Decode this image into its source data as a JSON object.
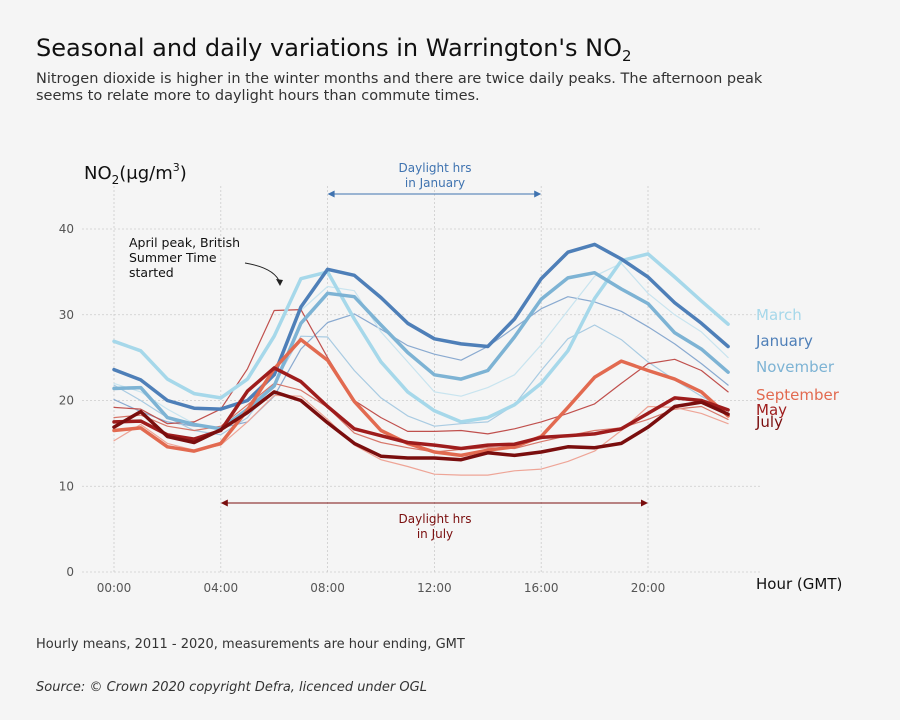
{
  "header": {
    "title_prefix": "Seasonal and daily variations in Warrington's NO",
    "title_sub": "2",
    "subtitle": "Nitrogen dioxide is higher in the winter months and there are twice daily peaks. The afternoon peak seems to relate more to daylight hours than commute times."
  },
  "footer": {
    "note": "Hourly means, 2011 - 2020, measurements are hour ending, GMT",
    "source": "Source: © Crown 2020 copyright Defra,  licenced under OGL"
  },
  "chart_data": {
    "type": "line",
    "ylabel_prefix": "NO",
    "ylabel_sub": "2",
    "ylabel_unit": "(μg/m",
    "ylabel_sup": "3",
    "ylabel_close": ")",
    "xlabel": "Hour (GMT)",
    "ylim": [
      0,
      45
    ],
    "xlim": [
      -1,
      24
    ],
    "yticks": [
      0,
      10,
      20,
      30,
      40
    ],
    "xticks": [
      0,
      4,
      8,
      12,
      16,
      20
    ],
    "xtick_labels": [
      "00:00",
      "04:00",
      "08:00",
      "12:00",
      "16:00",
      "20:00"
    ],
    "grid": true,
    "annotations": {
      "april": "April peak, British\nSummer Time\nstarted",
      "jan_daylight": "Daylight hrs\nin January",
      "jul_daylight": "Daylight hrs\nin July",
      "jan_range": [
        8,
        16
      ],
      "jul_range": [
        4,
        20
      ]
    },
    "x": [
      0,
      1,
      2,
      3,
      4,
      5,
      6,
      7,
      8,
      9,
      10,
      11,
      12,
      13,
      14,
      15,
      16,
      17,
      18,
      19,
      20,
      21,
      22,
      23
    ],
    "series": [
      {
        "name": "March",
        "color": "#a6d8ea",
        "width": 3.5,
        "labeled": true,
        "values": [
          26.9,
          25.8,
          22.5,
          20.8,
          20.3,
          22.5,
          27.5,
          34.2,
          35.0,
          29.5,
          24.5,
          21.0,
          18.8,
          17.5,
          18.0,
          19.5,
          22.0,
          25.8,
          31.9,
          36.3,
          37.1,
          34.4,
          31.6,
          28.9
        ]
      },
      {
        "name": "January",
        "color": "#4e7fb8",
        "width": 3.5,
        "labeled": true,
        "values": [
          23.6,
          22.4,
          20.0,
          19.1,
          19.0,
          20.0,
          23.0,
          30.9,
          35.3,
          34.6,
          32.0,
          29.0,
          27.2,
          26.6,
          26.3,
          29.5,
          34.2,
          37.3,
          38.2,
          36.5,
          34.4,
          31.4,
          29.0,
          26.3
        ]
      },
      {
        "name": "November",
        "color": "#7db3d4",
        "width": 3.5,
        "labeled": true,
        "values": [
          21.4,
          21.5,
          18.0,
          17.2,
          16.7,
          19.0,
          21.7,
          29.0,
          32.5,
          32.1,
          28.8,
          25.6,
          23.0,
          22.5,
          23.5,
          27.4,
          31.8,
          34.3,
          34.9,
          33.0,
          31.3,
          27.9,
          26.0,
          23.3
        ]
      },
      {
        "name": "September",
        "color": "#e26a50",
        "width": 3.5,
        "labeled": true,
        "values": [
          16.5,
          16.8,
          14.6,
          14.1,
          15.0,
          18.9,
          23.7,
          27.1,
          24.7,
          19.9,
          16.5,
          15.0,
          14.0,
          13.6,
          14.2,
          14.6,
          15.8,
          19.2,
          22.7,
          24.6,
          23.5,
          22.5,
          21.0,
          18.2
        ]
      },
      {
        "name": "May",
        "color": "#9e1c1c",
        "width": 3.5,
        "labeled": true,
        "values": [
          17.5,
          17.6,
          16.0,
          15.5,
          16.5,
          21.1,
          23.8,
          22.2,
          19.3,
          16.7,
          15.9,
          15.1,
          14.8,
          14.4,
          14.8,
          14.9,
          15.7,
          15.9,
          16.1,
          16.7,
          18.5,
          20.3,
          20.0,
          18.9
        ]
      },
      {
        "name": "July",
        "color": "#7a0e0e",
        "width": 3.5,
        "labeled": true,
        "values": [
          16.9,
          18.7,
          15.8,
          15.1,
          16.6,
          18.6,
          21.0,
          20.0,
          17.4,
          15.0,
          13.5,
          13.3,
          13.3,
          13.1,
          13.9,
          13.6,
          14.0,
          14.6,
          14.5,
          15.0,
          16.9,
          19.3,
          19.8,
          18.4
        ]
      },
      {
        "name": "",
        "color": "#8aaad0",
        "width": 1.2,
        "labeled": false,
        "values": [
          20.1,
          18.7,
          17.5,
          17.0,
          16.8,
          17.5,
          20.5,
          26.0,
          29.1,
          30.1,
          28.3,
          26.4,
          25.4,
          24.7,
          26.3,
          28.5,
          30.7,
          32.1,
          31.5,
          30.4,
          28.6,
          26.6,
          24.3,
          21.8
        ]
      },
      {
        "name": "",
        "color": "#a9cbe2",
        "width": 1.2,
        "labeled": false,
        "values": [
          21.8,
          20.0,
          18.0,
          16.5,
          16.0,
          18.0,
          22.0,
          27.5,
          27.4,
          23.5,
          20.3,
          18.2,
          17.0,
          17.3,
          17.5,
          19.5,
          23.5,
          27.2,
          28.8,
          27.1,
          24.5,
          22.4,
          20.5,
          18.8
        ]
      },
      {
        "name": "",
        "color": "#c8e4ef",
        "width": 1.2,
        "labeled": false,
        "values": [
          22.0,
          21.0,
          19.0,
          17.3,
          16.5,
          19.0,
          23.5,
          30.5,
          33.3,
          32.8,
          28.0,
          24.5,
          21.0,
          20.5,
          21.5,
          23.0,
          26.5,
          30.5,
          34.5,
          36.0,
          32.5,
          30.0,
          28.0,
          25.0
        ]
      },
      {
        "name": "",
        "color": "#c0504d",
        "width": 1.2,
        "labeled": false,
        "values": [
          19.2,
          19.0,
          17.3,
          17.5,
          19.0,
          23.7,
          30.5,
          30.6,
          25.0,
          20.0,
          18.0,
          16.4,
          16.4,
          16.5,
          16.1,
          16.7,
          17.5,
          18.5,
          19.6,
          22.0,
          24.3,
          24.8,
          23.5,
          21.0
        ]
      },
      {
        "name": "",
        "color": "#d7776a",
        "width": 1.2,
        "labeled": false,
        "values": [
          18.0,
          18.3,
          17.0,
          16.5,
          17.0,
          19.5,
          22.0,
          21.2,
          19.2,
          16.2,
          15.1,
          14.5,
          14.0,
          14.3,
          14.5,
          14.4,
          15.2,
          15.9,
          16.5,
          16.8,
          17.8,
          19.0,
          19.3,
          17.8
        ]
      },
      {
        "name": "",
        "color": "#eea597",
        "width": 1.2,
        "labeled": false,
        "values": [
          15.3,
          17.2,
          15.0,
          14.2,
          14.8,
          17.5,
          20.6,
          20.5,
          17.8,
          14.8,
          13.1,
          12.3,
          11.4,
          11.3,
          11.3,
          11.8,
          12.0,
          12.9,
          14.1,
          16.5,
          19.3,
          19.2,
          18.5,
          17.3
        ]
      }
    ]
  }
}
